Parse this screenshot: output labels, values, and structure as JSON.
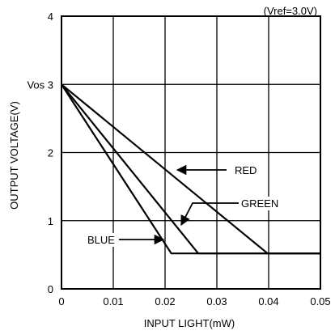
{
  "chart_data": {
    "type": "line",
    "note": "(Vref=3.0V)",
    "xlabel": "INPUT LIGHT(mW)",
    "ylabel": "OUTPUT VOLTAGE(V)",
    "xlim": [
      0,
      0.05
    ],
    "ylim": [
      0,
      4
    ],
    "grid": true,
    "x_ticks": [
      0,
      0.01,
      0.02,
      0.03,
      0.04,
      0.05
    ],
    "x_tick_labels": [
      "0",
      "0.01",
      "0.02",
      "0.03",
      "0.04",
      "0.05"
    ],
    "y_ticks": [
      0,
      1,
      2,
      3,
      4
    ],
    "y_tick_labels": [
      "0",
      "1",
      "2",
      "Vos 3",
      "4"
    ],
    "series": [
      {
        "name": "RED",
        "color": "#000000",
        "points": [
          [
            0,
            3.0
          ],
          [
            0.0398,
            0.52
          ],
          [
            0.05,
            0.52
          ]
        ]
      },
      {
        "name": "GREEN",
        "color": "#000000",
        "points": [
          [
            0,
            3.0
          ],
          [
            0.0264,
            0.52
          ],
          [
            0.05,
            0.52
          ]
        ]
      },
      {
        "name": "BLUE",
        "color": "#000000",
        "points": [
          [
            0,
            3.0
          ],
          [
            0.0212,
            0.52
          ],
          [
            0.05,
            0.52
          ]
        ]
      }
    ],
    "annotations": [
      {
        "label": "RED",
        "pointer": "arrow-left",
        "target": [
          0.0225,
          1.8
        ]
      },
      {
        "label": "GREEN",
        "pointer": "arrow-up",
        "target": [
          0.0235,
          1.1
        ]
      },
      {
        "label": "BLUE",
        "pointer": "arrow-right",
        "target": [
          0.0198,
          0.85
        ]
      }
    ]
  }
}
